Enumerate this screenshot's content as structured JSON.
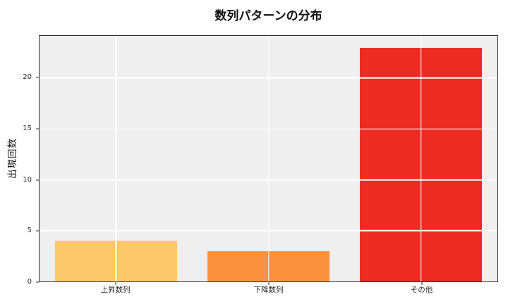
{
  "chart_data": {
    "type": "bar",
    "title": "数列パターンの分布",
    "xlabel": "",
    "ylabel": "出現回数",
    "categories": [
      "上昇数列",
      "下降数列",
      "その他"
    ],
    "values": [
      4,
      3,
      23
    ],
    "bar_colors": [
      "#FDC76B",
      "#FA913E",
      "#EC2B23"
    ],
    "bar_names": [
      "bar-rising-sequence",
      "bar-falling-sequence",
      "bar-other"
    ],
    "ylim": [
      0,
      24.15
    ],
    "yticks": [
      0,
      5,
      10,
      15,
      20
    ],
    "legend": "none",
    "grid": "on",
    "gridline_color": "#FFFFFF",
    "panel_background": "#EFEFEF",
    "spine_color": "#2b2b2b",
    "figure_background": "#FFFFFF"
  }
}
